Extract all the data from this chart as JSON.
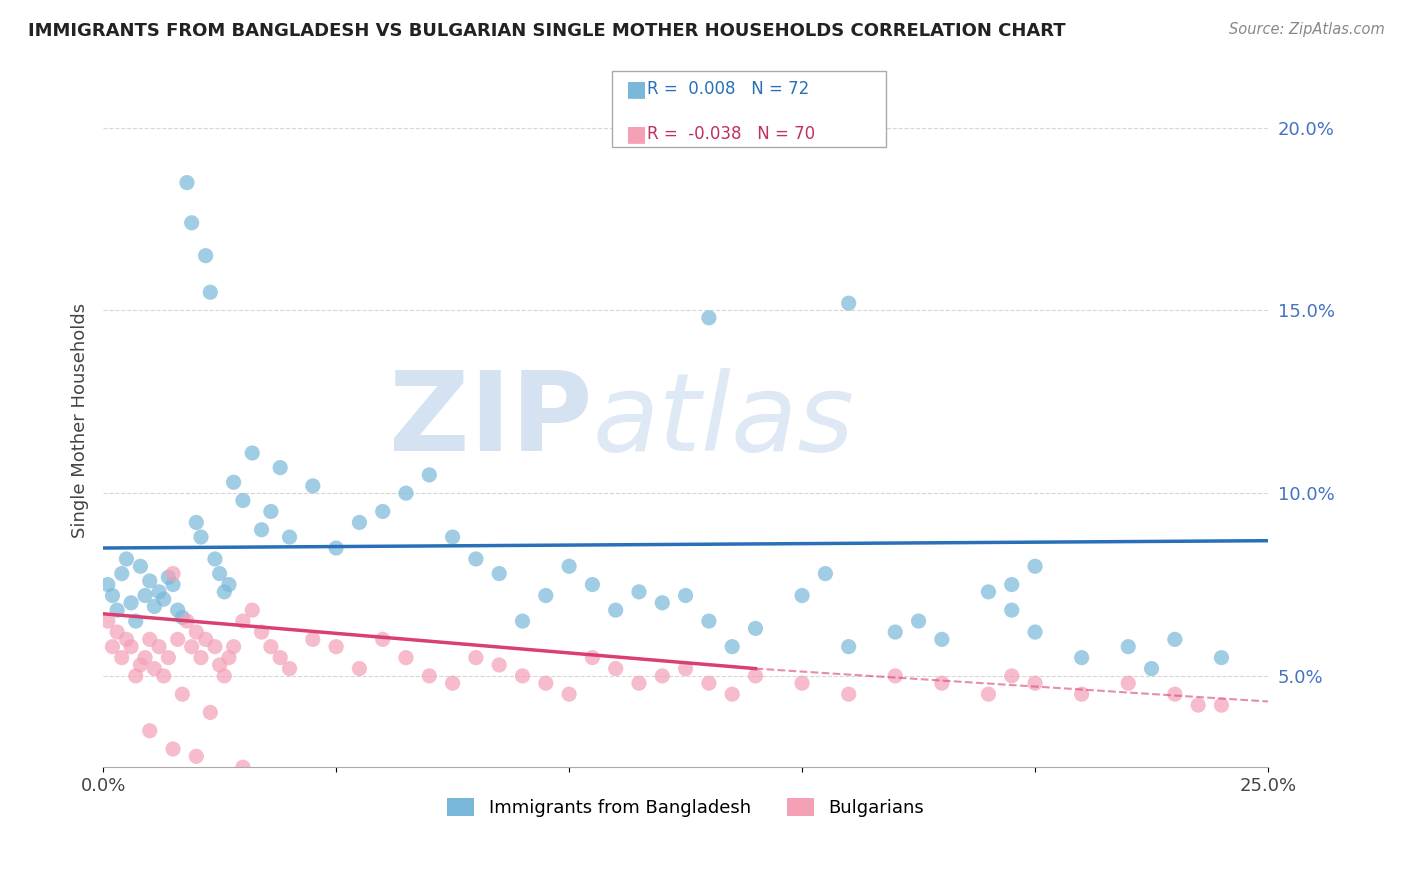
{
  "title": "IMMIGRANTS FROM BANGLADESH VS BULGARIAN SINGLE MOTHER HOUSEHOLDS CORRELATION CHART",
  "source": "Source: ZipAtlas.com",
  "ylabel": "Single Mother Households",
  "xlim": [
    0.0,
    0.25
  ],
  "ylim": [
    0.025,
    0.215
  ],
  "x_ticks": [
    0.0,
    0.05,
    0.1,
    0.15,
    0.2,
    0.25
  ],
  "x_tick_labels": [
    "0.0%",
    "",
    "",
    "",
    "",
    "25.0%"
  ],
  "y_ticks": [
    0.05,
    0.1,
    0.15,
    0.2
  ],
  "y_tick_labels": [
    "5.0%",
    "10.0%",
    "15.0%",
    "20.0%"
  ],
  "legend1_label": "Immigrants from Bangladesh",
  "legend2_label": "Bulgarians",
  "R1": "0.008",
  "N1": "72",
  "R2": "-0.038",
  "N2": "70",
  "color_blue": "#7ab8d9",
  "color_pink": "#f4a0b5",
  "color_blue_line": "#2970b8",
  "color_pink_line": "#d94070",
  "watermark_zip": "ZIP",
  "watermark_atlas": "atlas",
  "bd_x": [
    0.001,
    0.002,
    0.003,
    0.004,
    0.005,
    0.006,
    0.007,
    0.008,
    0.009,
    0.01,
    0.011,
    0.012,
    0.013,
    0.014,
    0.015,
    0.016,
    0.017,
    0.018,
    0.019,
    0.02,
    0.021,
    0.022,
    0.023,
    0.024,
    0.025,
    0.026,
    0.027,
    0.028,
    0.03,
    0.032,
    0.034,
    0.036,
    0.038,
    0.04,
    0.045,
    0.05,
    0.055,
    0.06,
    0.065,
    0.07,
    0.075,
    0.08,
    0.085,
    0.09,
    0.095,
    0.1,
    0.105,
    0.11,
    0.115,
    0.12,
    0.125,
    0.13,
    0.135,
    0.14,
    0.15,
    0.155,
    0.16,
    0.17,
    0.175,
    0.18,
    0.19,
    0.195,
    0.2,
    0.21,
    0.22,
    0.225,
    0.23,
    0.24,
    0.195,
    0.2,
    0.13,
    0.16
  ],
  "bd_y": [
    0.075,
    0.072,
    0.068,
    0.078,
    0.082,
    0.07,
    0.065,
    0.08,
    0.072,
    0.076,
    0.069,
    0.073,
    0.071,
    0.077,
    0.075,
    0.068,
    0.066,
    0.185,
    0.174,
    0.092,
    0.088,
    0.165,
    0.155,
    0.082,
    0.078,
    0.073,
    0.075,
    0.103,
    0.098,
    0.111,
    0.09,
    0.095,
    0.107,
    0.088,
    0.102,
    0.085,
    0.092,
    0.095,
    0.1,
    0.105,
    0.088,
    0.082,
    0.078,
    0.065,
    0.072,
    0.08,
    0.075,
    0.068,
    0.073,
    0.07,
    0.072,
    0.065,
    0.058,
    0.063,
    0.072,
    0.078,
    0.058,
    0.062,
    0.065,
    0.06,
    0.073,
    0.068,
    0.062,
    0.055,
    0.058,
    0.052,
    0.06,
    0.055,
    0.075,
    0.08,
    0.148,
    0.152
  ],
  "bg_x": [
    0.001,
    0.002,
    0.003,
    0.004,
    0.005,
    0.006,
    0.007,
    0.008,
    0.009,
    0.01,
    0.011,
    0.012,
    0.013,
    0.014,
    0.015,
    0.016,
    0.017,
    0.018,
    0.019,
    0.02,
    0.021,
    0.022,
    0.023,
    0.024,
    0.025,
    0.026,
    0.027,
    0.028,
    0.03,
    0.032,
    0.034,
    0.036,
    0.038,
    0.04,
    0.045,
    0.05,
    0.055,
    0.06,
    0.065,
    0.07,
    0.075,
    0.08,
    0.085,
    0.09,
    0.095,
    0.1,
    0.105,
    0.11,
    0.115,
    0.12,
    0.125,
    0.13,
    0.135,
    0.14,
    0.15,
    0.16,
    0.17,
    0.18,
    0.19,
    0.195,
    0.2,
    0.21,
    0.22,
    0.23,
    0.235,
    0.24,
    0.01,
    0.015,
    0.02,
    0.03
  ],
  "bg_y": [
    0.065,
    0.058,
    0.062,
    0.055,
    0.06,
    0.058,
    0.05,
    0.053,
    0.055,
    0.06,
    0.052,
    0.058,
    0.05,
    0.055,
    0.078,
    0.06,
    0.045,
    0.065,
    0.058,
    0.062,
    0.055,
    0.06,
    0.04,
    0.058,
    0.053,
    0.05,
    0.055,
    0.058,
    0.065,
    0.068,
    0.062,
    0.058,
    0.055,
    0.052,
    0.06,
    0.058,
    0.052,
    0.06,
    0.055,
    0.05,
    0.048,
    0.055,
    0.053,
    0.05,
    0.048,
    0.045,
    0.055,
    0.052,
    0.048,
    0.05,
    0.052,
    0.048,
    0.045,
    0.05,
    0.048,
    0.045,
    0.05,
    0.048,
    0.045,
    0.05,
    0.048,
    0.045,
    0.048,
    0.045,
    0.042,
    0.042,
    0.035,
    0.03,
    0.028,
    0.025
  ],
  "bd_line_x0": 0.0,
  "bd_line_x1": 0.25,
  "bd_line_y0": 0.085,
  "bd_line_y1": 0.087,
  "bg_line_solid_x0": 0.0,
  "bg_line_solid_x1": 0.14,
  "bg_line_solid_y0": 0.067,
  "bg_line_solid_y1": 0.052,
  "bg_line_dash_x0": 0.14,
  "bg_line_dash_x1": 0.25,
  "bg_line_dash_y0": 0.052,
  "bg_line_dash_y1": 0.043
}
